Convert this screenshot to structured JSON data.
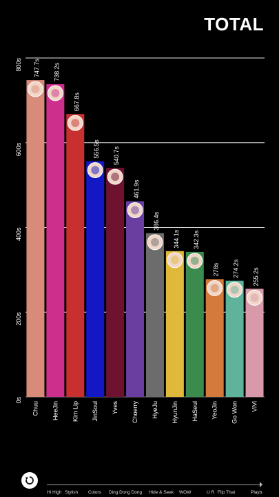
{
  "header": {
    "title": "TOTAL"
  },
  "controls": {
    "replay_icon": "replay-icon"
  },
  "timeline": {
    "labels": [
      "Hi High",
      "Stylish",
      "Colors",
      "Ding Dong Dong",
      "Hide & Seek",
      "WOW",
      "U R",
      "Flip That",
      "Playback"
    ]
  },
  "chart_data": {
    "type": "bar",
    "title": "TOTAL",
    "ylim": [
      0,
      800
    ],
    "yticks": [
      0,
      200,
      400,
      600,
      800
    ],
    "ytick_labels": [
      "0s",
      "200s",
      "400s",
      "600s",
      "800s"
    ],
    "grid": true,
    "categories": [
      "Chuu",
      "HeeJin",
      "Kim Lip",
      "JinSoul",
      "Yves",
      "Choerry",
      "HyeJu",
      "HyunJin",
      "HaSeul",
      "YeoJin",
      "Go Won",
      "ViVi"
    ],
    "values": [
      747.7,
      738.2,
      667.8,
      556.5,
      540.7,
      461.9,
      386.4,
      344.1,
      342.3,
      278,
      274.2,
      255.2
    ],
    "value_labels": [
      "747.7s",
      "738.2s",
      "667.8s",
      "556.5s",
      "540.7s",
      "461.9s",
      "386.4s",
      "344.1s",
      "342.3s",
      "278s",
      "274.2s",
      "255.2s"
    ],
    "colors": [
      "#d98b7a",
      "#cc2f8c",
      "#c8302f",
      "#1418c4",
      "#6e1230",
      "#6a3ea1",
      "#6c6c6c",
      "#e0b83a",
      "#3b8a4e",
      "#d47a3c",
      "#5fb39a",
      "#d89aaa"
    ]
  }
}
